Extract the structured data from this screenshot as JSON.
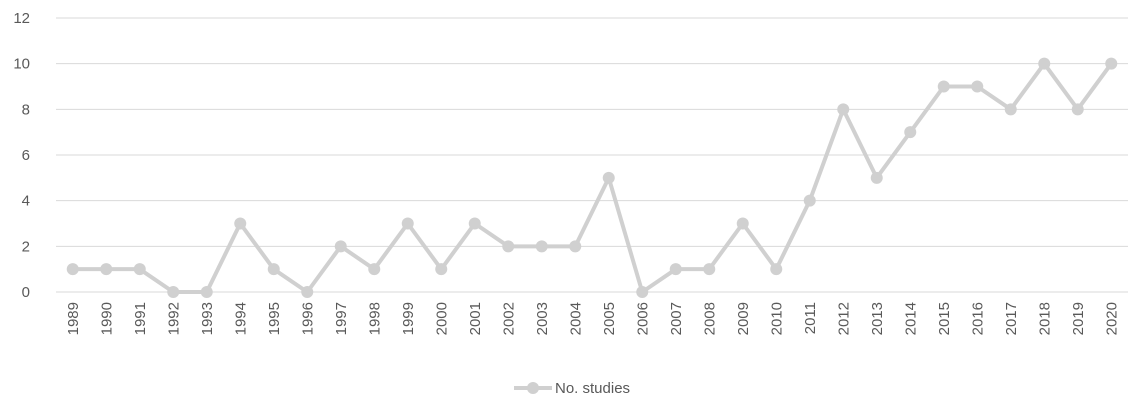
{
  "chart_data": {
    "type": "line",
    "title": "",
    "xlabel": "",
    "ylabel": "",
    "x": [
      "1989",
      "1990",
      "1991",
      "1992",
      "1993",
      "1994",
      "1995",
      "1996",
      "1997",
      "1998",
      "1999",
      "2000",
      "2001",
      "2002",
      "2003",
      "2004",
      "2005",
      "2006",
      "2007",
      "2008",
      "2009",
      "2010",
      "2011",
      "2012",
      "2013",
      "2014",
      "2015",
      "2016",
      "2017",
      "2018",
      "2019",
      "2020"
    ],
    "series": [
      {
        "name": "No. studies",
        "color": "#d0d0d0",
        "values": [
          1,
          1,
          1,
          0,
          0,
          3,
          1,
          0,
          2,
          1,
          3,
          1,
          3,
          2,
          2,
          2,
          5,
          0,
          1,
          1,
          3,
          1,
          4,
          8,
          5,
          7,
          9,
          9,
          8,
          10,
          8,
          10
        ]
      }
    ],
    "ylim": [
      0,
      12
    ],
    "yticks": [
      0,
      2,
      4,
      6,
      8,
      10,
      12
    ],
    "grid": true,
    "legend": "bottom-center"
  }
}
